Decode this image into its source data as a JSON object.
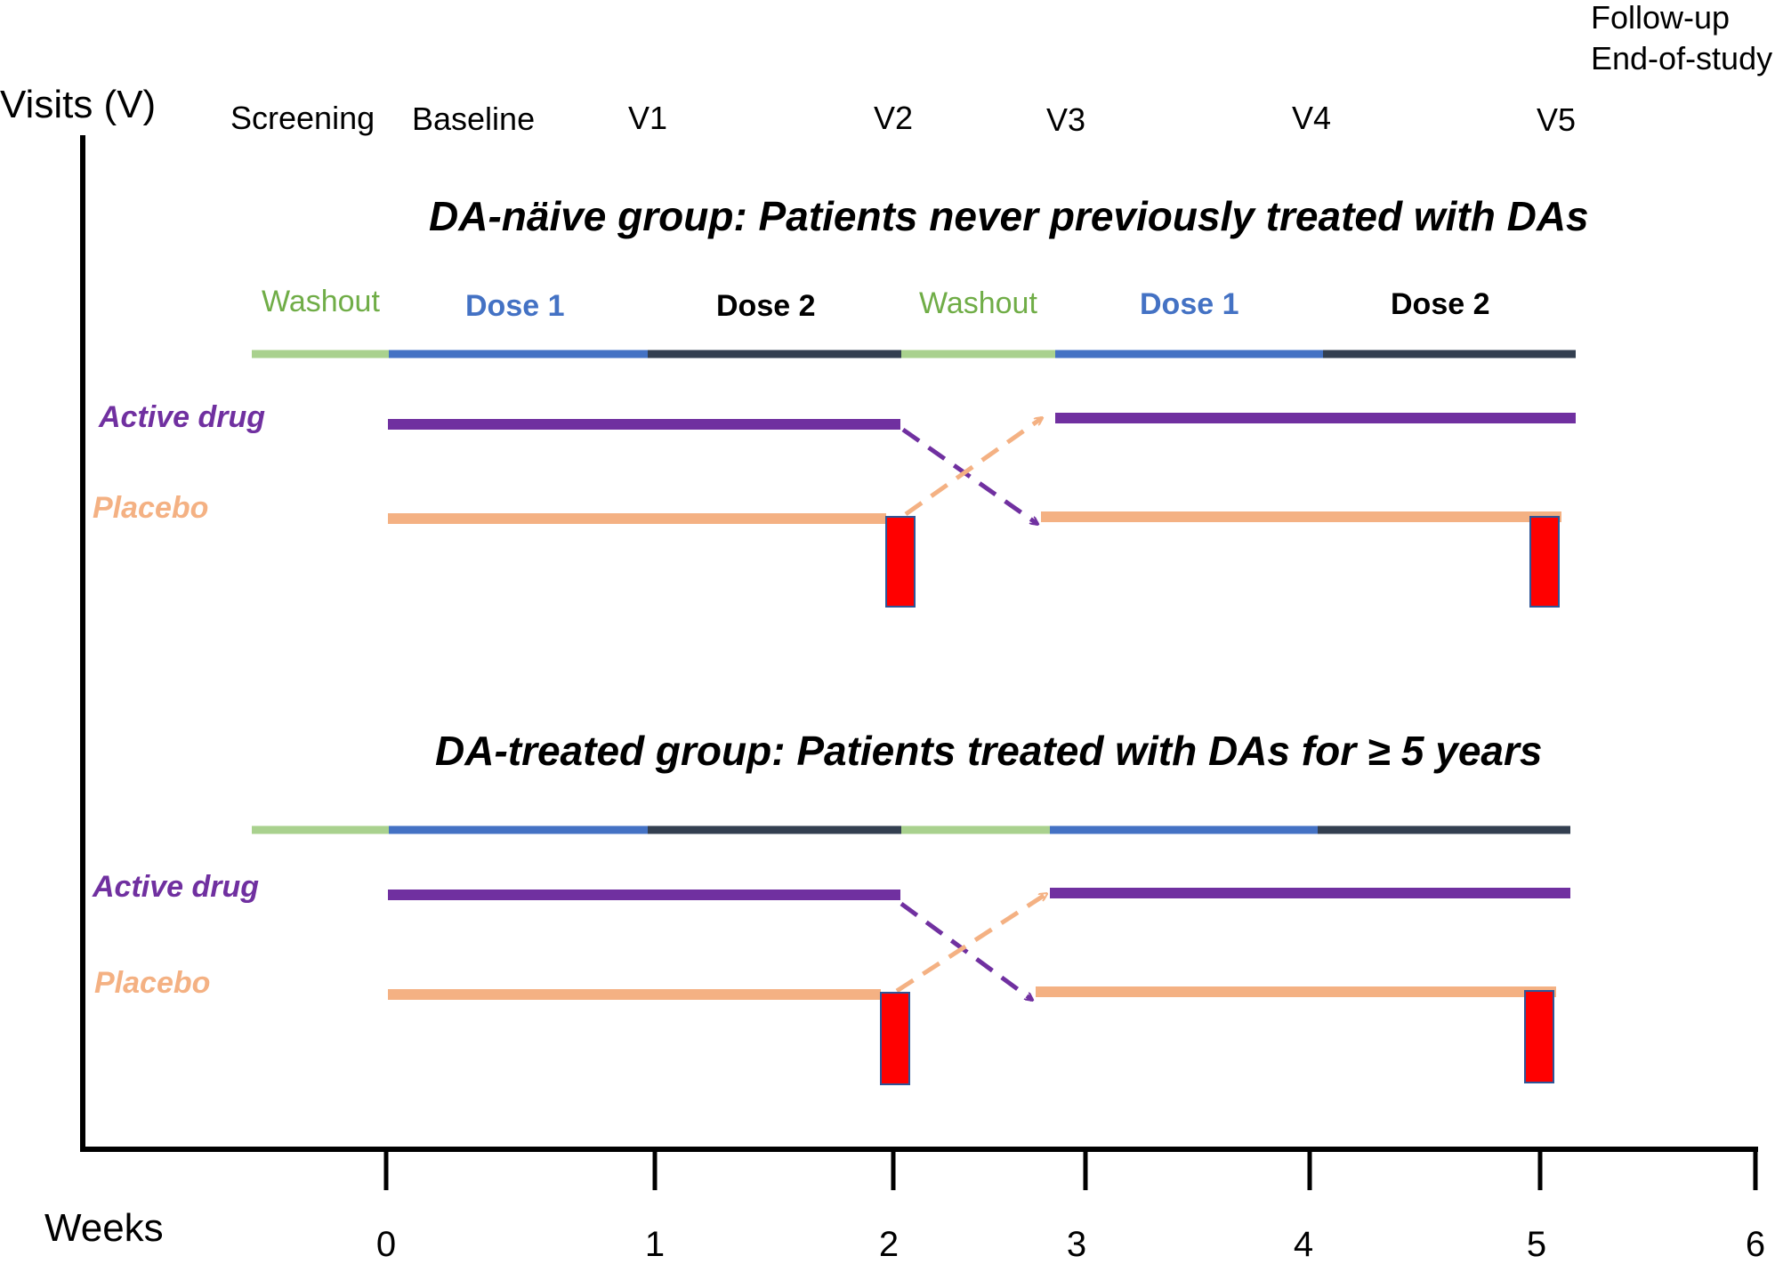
{
  "axis": {
    "y_title": "Visits (V)",
    "x_title": "Weeks",
    "ticks": [
      "0",
      "1",
      "2",
      "3",
      "4",
      "5",
      "6"
    ]
  },
  "visits": {
    "screening": "Screening",
    "baseline": "Baseline",
    "v1": "V1",
    "v2": "V2",
    "v3": "V3",
    "v4": "V4",
    "v5": "V5",
    "follow_up": "Follow-up",
    "end_of_study": "End-of-study"
  },
  "phases": {
    "washout": "Washout",
    "dose1": "Dose 1",
    "dose2": "Dose 2"
  },
  "groups": {
    "naive": {
      "title": "DA-näive group:  Patients never previously treated with DAs",
      "active_label": "Active drug",
      "placebo_label": "Placebo"
    },
    "treated": {
      "title": "DA-treated group:  Patients treated with DAs for ≥ 5 years",
      "active_label": "Active drug",
      "placebo_label": "Placebo"
    }
  },
  "colors": {
    "washout": "#a9d18e",
    "dose1": "#4472c4",
    "dose2": "#333f50",
    "active": "#7030a0",
    "placebo": "#f4b183",
    "marker_fill": "#ff0000",
    "marker_stroke": "#2f5597"
  }
}
